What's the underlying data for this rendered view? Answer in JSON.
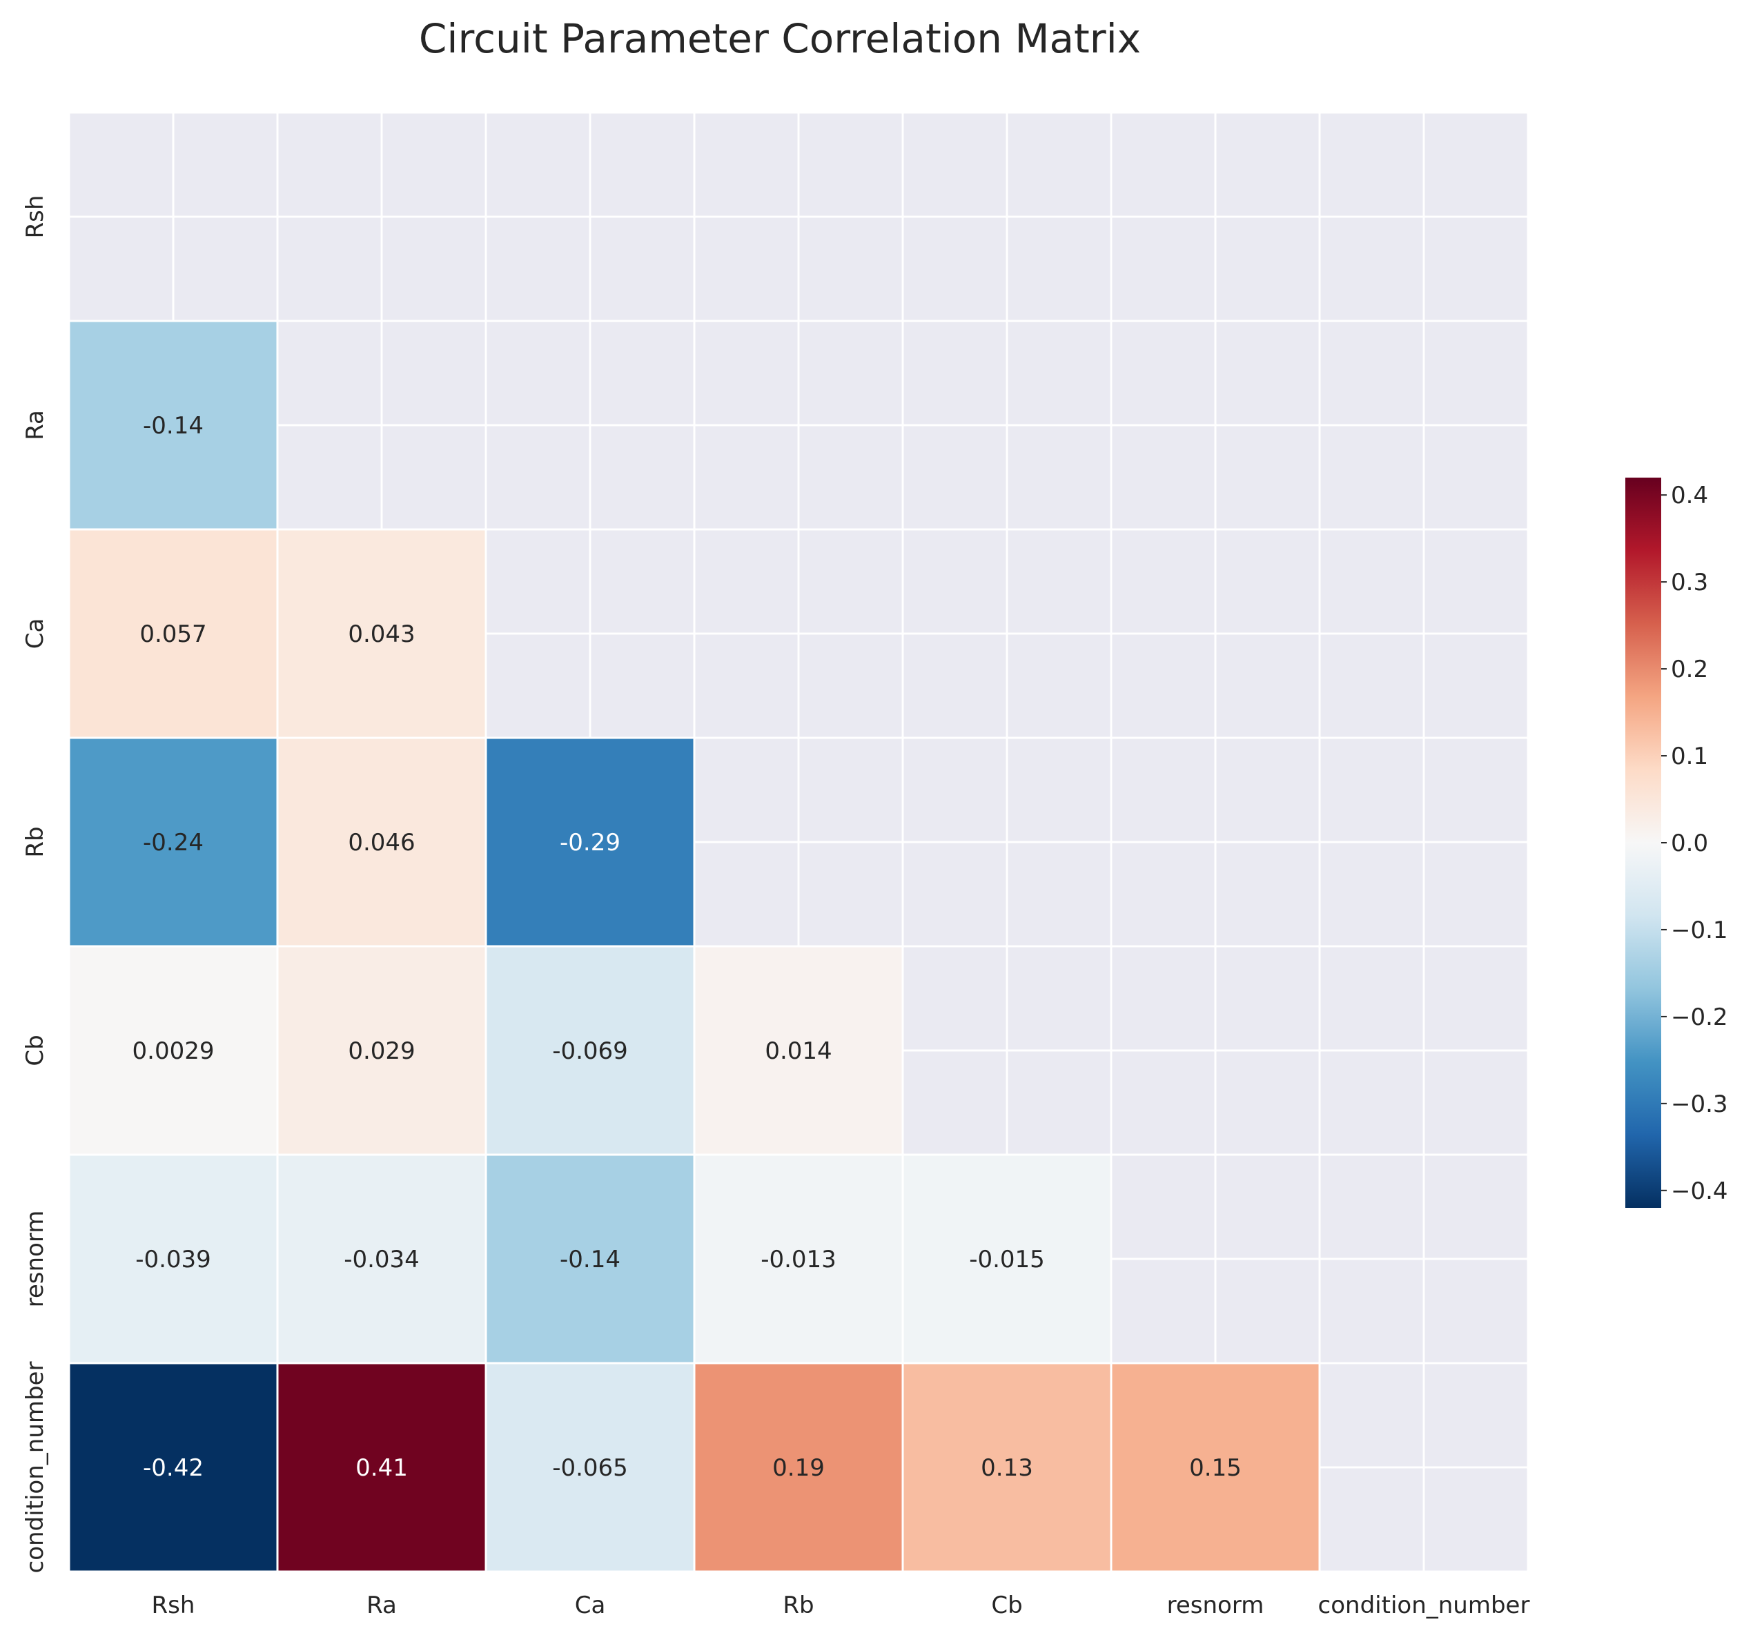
{
  "chart_data": {
    "type": "heatmap",
    "title": "Circuit Parameter Correlation Matrix",
    "variables": [
      "Rsh",
      "Ra",
      "Ca",
      "Rb",
      "Cb",
      "resnorm",
      "condition_number"
    ],
    "mask": "upper triangle including diagonal",
    "colormap": "RdBu_r",
    "vmin": -0.42,
    "vmax": 0.42,
    "grid": true,
    "background_color": "#eaeaf2",
    "cells": [
      {
        "row": "Ra",
        "col": "Rsh",
        "value": -0.14,
        "label": "-0.14"
      },
      {
        "row": "Ca",
        "col": "Rsh",
        "value": 0.057,
        "label": "0.057"
      },
      {
        "row": "Ca",
        "col": "Ra",
        "value": 0.043,
        "label": "0.043"
      },
      {
        "row": "Rb",
        "col": "Rsh",
        "value": -0.24,
        "label": "-0.24"
      },
      {
        "row": "Rb",
        "col": "Ra",
        "value": 0.046,
        "label": "0.046"
      },
      {
        "row": "Rb",
        "col": "Ca",
        "value": -0.29,
        "label": "-0.29"
      },
      {
        "row": "Cb",
        "col": "Rsh",
        "value": 0.0029,
        "label": "0.0029"
      },
      {
        "row": "Cb",
        "col": "Ra",
        "value": 0.029,
        "label": "0.029"
      },
      {
        "row": "Cb",
        "col": "Ca",
        "value": -0.069,
        "label": "-0.069"
      },
      {
        "row": "Cb",
        "col": "Rb",
        "value": 0.014,
        "label": "0.014"
      },
      {
        "row": "resnorm",
        "col": "Rsh",
        "value": -0.039,
        "label": "-0.039"
      },
      {
        "row": "resnorm",
        "col": "Ra",
        "value": -0.034,
        "label": "-0.034"
      },
      {
        "row": "resnorm",
        "col": "Ca",
        "value": -0.14,
        "label": "-0.14"
      },
      {
        "row": "resnorm",
        "col": "Rb",
        "value": -0.013,
        "label": "-0.013"
      },
      {
        "row": "resnorm",
        "col": "Cb",
        "value": -0.015,
        "label": "-0.015"
      },
      {
        "row": "condition_number",
        "col": "Rsh",
        "value": -0.42,
        "label": "-0.42"
      },
      {
        "row": "condition_number",
        "col": "Ra",
        "value": 0.41,
        "label": "0.41"
      },
      {
        "row": "condition_number",
        "col": "Ca",
        "value": -0.065,
        "label": "-0.065"
      },
      {
        "row": "condition_number",
        "col": "Rb",
        "value": 0.19,
        "label": "0.19"
      },
      {
        "row": "condition_number",
        "col": "Cb",
        "value": 0.13,
        "label": "0.13"
      },
      {
        "row": "condition_number",
        "col": "resnorm",
        "value": 0.15,
        "label": "0.15"
      }
    ],
    "colorbar": {
      "position": "right",
      "ticks": [
        0.4,
        0.3,
        0.2,
        0.1,
        0.0,
        -0.1,
        -0.2,
        -0.3,
        -0.4
      ],
      "tick_labels": [
        "0.4",
        "0.3",
        "0.2",
        "0.1",
        "0.0",
        "−0.1",
        "−0.2",
        "−0.3",
        "−0.4"
      ]
    }
  }
}
